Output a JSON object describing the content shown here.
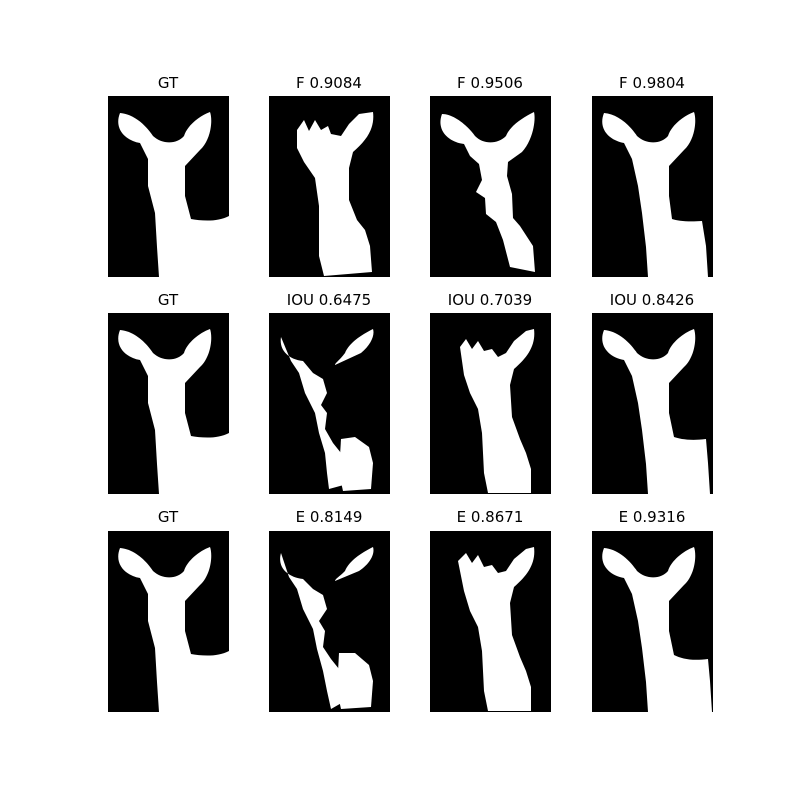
{
  "figure": {
    "rows": [
      {
        "metric": "F",
        "panels": [
          {
            "title": "GT"
          },
          {
            "title": "F 0.9084"
          },
          {
            "title": "F 0.9506"
          },
          {
            "title": "F 0.9804"
          }
        ]
      },
      {
        "metric": "IOU",
        "panels": [
          {
            "title": "GT"
          },
          {
            "title": "IOU 0.6475"
          },
          {
            "title": "IOU 0.7039"
          },
          {
            "title": "IOU 0.8426"
          }
        ]
      },
      {
        "metric": "E",
        "panels": [
          {
            "title": "GT"
          },
          {
            "title": "E 0.8149"
          },
          {
            "title": "E 0.8671"
          },
          {
            "title": "E 0.9316"
          }
        ]
      }
    ]
  },
  "colors": {
    "background": "#000000",
    "foreground": "#ffffff"
  }
}
